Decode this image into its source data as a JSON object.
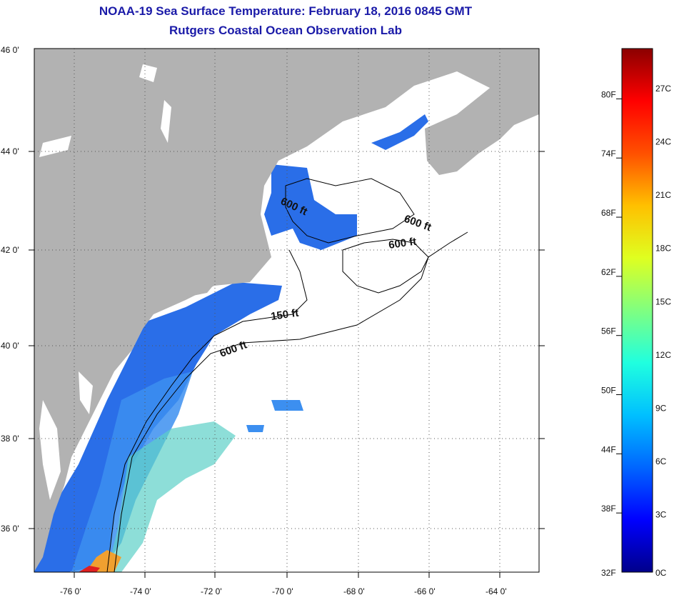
{
  "header": {
    "title": "NOAA-19 Sea Surface Temperature:  February 18, 2016 0845 GMT",
    "subtitle": "Rutgers Coastal Ocean Observation Lab"
  },
  "map": {
    "lat_labels": [
      "46 0'",
      "44 0'",
      "42 0'",
      "40 0'",
      "38 0'",
      "36 0'"
    ],
    "lon_labels": [
      "-76 0'",
      "-74 0'",
      "-72 0'",
      "-70 0'",
      "-68 0'",
      "-66 0'",
      "-64 0'"
    ],
    "contour_labels": [
      {
        "id": "c1",
        "text": "600 ft"
      },
      {
        "id": "c2",
        "text": "600 ft"
      },
      {
        "id": "c3",
        "text": "600 ft"
      },
      {
        "id": "c4",
        "text": "150 ft"
      },
      {
        "id": "c5",
        "text": "600 ft"
      }
    ],
    "colors": {
      "land": "#b2b2b2",
      "water_cloud": "#ffffff",
      "grid": "#555555"
    }
  },
  "colorbar": {
    "fahrenheit_labels": [
      "80F",
      "74F",
      "68F",
      "62F",
      "56F",
      "50F",
      "44F",
      "38F",
      "32F"
    ],
    "celsius_labels": [
      "27C",
      "24C",
      "21C",
      "18C",
      "15C",
      "12C",
      "9C",
      "6C",
      "3C",
      "0C"
    ],
    "range_c": [
      0,
      29.5
    ],
    "stops": [
      "#00008b",
      "#0000ff",
      "#0066ff",
      "#00c0ff",
      "#20ffdf",
      "#80ff80",
      "#dfff20",
      "#ffc000",
      "#ff5000",
      "#ff0000",
      "#8b0000"
    ]
  }
}
